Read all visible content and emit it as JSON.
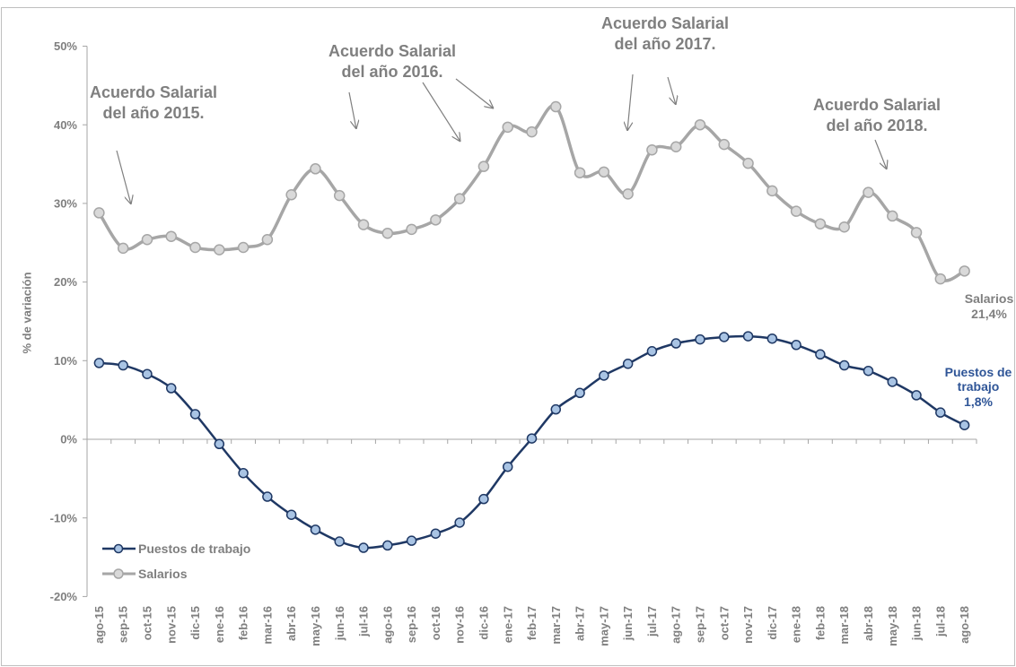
{
  "colors": {
    "text": "#7F7F7F",
    "axis": "#A6A6A6",
    "frame": "#BFBFBF",
    "puestos_label": "#2F5597"
  },
  "chart_data": {
    "type": "line",
    "smoothed": true,
    "ylabel": "% de variación",
    "ylim": [
      -20,
      50
    ],
    "grid": false,
    "legend": "bottom-left",
    "y_ticks": [
      {
        "value": 50,
        "label": "50%"
      },
      {
        "value": 40,
        "label": "40%"
      },
      {
        "value": 30,
        "label": "30%"
      },
      {
        "value": 20,
        "label": "20%"
      },
      {
        "value": 10,
        "label": "10%"
      },
      {
        "value": 0,
        "label": "0%"
      },
      {
        "value": -10,
        "label": "-10%"
      },
      {
        "value": -20,
        "label": "-20%"
      }
    ],
    "categories": [
      "ago-15",
      "sep-15",
      "oct-15",
      "nov-15",
      "dic-15",
      "ene-16",
      "feb-16",
      "mar-16",
      "abr-16",
      "may-16",
      "jun-16",
      "jul-16",
      "ago-16",
      "sep-16",
      "oct-16",
      "nov-16",
      "dic-16",
      "ene-17",
      "feb-17",
      "mar-17",
      "abr-17",
      "may-17",
      "jun-17",
      "jul-17",
      "ago-17",
      "sep-17",
      "oct-17",
      "nov-17",
      "dic-17",
      "ene-18",
      "feb-18",
      "mar-18",
      "abr-18",
      "may-18",
      "jun-18",
      "jul-18",
      "ago-18"
    ],
    "series": [
      {
        "name": "Puestos de trabajo",
        "color": "#1F3864",
        "marker_fill": "#A9C4E4",
        "values": [
          9.7,
          9.4,
          8.3,
          6.5,
          3.2,
          -0.6,
          -4.3,
          -7.3,
          -9.6,
          -11.5,
          -13.0,
          -13.8,
          -13.5,
          -12.9,
          -12.0,
          -10.6,
          -7.6,
          -3.5,
          0.1,
          3.8,
          5.9,
          8.1,
          9.6,
          11.2,
          12.2,
          12.7,
          13.0,
          13.1,
          12.8,
          12.0,
          10.8,
          9.4,
          8.7,
          7.3,
          5.6,
          3.4,
          1.8
        ]
      },
      {
        "name": "Salarios",
        "color": "#A6A6A6",
        "marker_fill": "#D9D9D9",
        "values": [
          28.8,
          24.3,
          25.4,
          25.8,
          24.4,
          24.1,
          24.4,
          25.4,
          31.1,
          34.4,
          31.0,
          27.3,
          26.2,
          26.7,
          27.9,
          30.6,
          34.7,
          39.7,
          39.1,
          42.3,
          33.9,
          34.0,
          31.2,
          36.8,
          37.2,
          40.0,
          37.5,
          35.1,
          31.6,
          29.0,
          27.4,
          27.0,
          31.4,
          28.4,
          26.3,
          20.4,
          21.4
        ]
      }
    ],
    "annotations": [
      {
        "line1": "Acuerdo Salarial",
        "line2": "del año 2015."
      },
      {
        "line1": "Acuerdo Salarial",
        "line2": "del año 2016."
      },
      {
        "line1": "Acuerdo Salarial",
        "line2": "del año 2017."
      },
      {
        "line1": "Acuerdo Salarial",
        "line2": "del año 2018."
      }
    ],
    "end_labels": {
      "salarios": {
        "line1": "Salarios",
        "line2": "21,4%"
      },
      "puestos": {
        "line1": "Puestos de",
        "line2": "trabajo",
        "line3": "1,8%"
      }
    }
  }
}
